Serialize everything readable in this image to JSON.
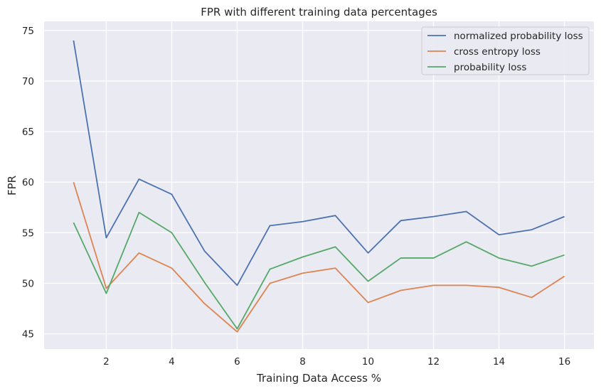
{
  "chart_data": {
    "type": "line",
    "title": "FPR with different training data percentages",
    "xlabel": "Training Data Access %",
    "ylabel": "FPR",
    "xlim": [
      0.1,
      16.9
    ],
    "ylim": [
      43.5,
      75.9
    ],
    "xticks": [
      2,
      4,
      6,
      8,
      10,
      12,
      14,
      16
    ],
    "yticks": [
      45,
      50,
      55,
      60,
      65,
      70,
      75
    ],
    "grid": true,
    "legend_position": "top-right",
    "x": [
      1,
      2,
      3,
      4,
      5,
      6,
      7,
      8,
      9,
      10,
      11,
      12,
      13,
      14,
      15,
      16
    ],
    "series": [
      {
        "name": "normalized probability loss",
        "color": "#4c72b0",
        "values": [
          74.0,
          54.5,
          60.3,
          58.8,
          53.2,
          49.8,
          55.7,
          56.1,
          56.7,
          53.0,
          56.2,
          56.6,
          57.1,
          54.8,
          55.3,
          56.6
        ]
      },
      {
        "name": "cross entropy loss",
        "color": "#dd8452",
        "values": [
          60.0,
          49.5,
          53.0,
          51.5,
          48.0,
          45.2,
          50.0,
          51.0,
          51.5,
          48.1,
          49.3,
          49.8,
          49.8,
          49.6,
          48.6,
          50.7
        ]
      },
      {
        "name": "probability loss",
        "color": "#55a868",
        "values": [
          56.0,
          49.0,
          57.0,
          55.0,
          50.1,
          45.5,
          51.4,
          52.6,
          53.6,
          50.2,
          52.5,
          52.5,
          54.1,
          52.5,
          51.7,
          52.8
        ]
      }
    ]
  }
}
